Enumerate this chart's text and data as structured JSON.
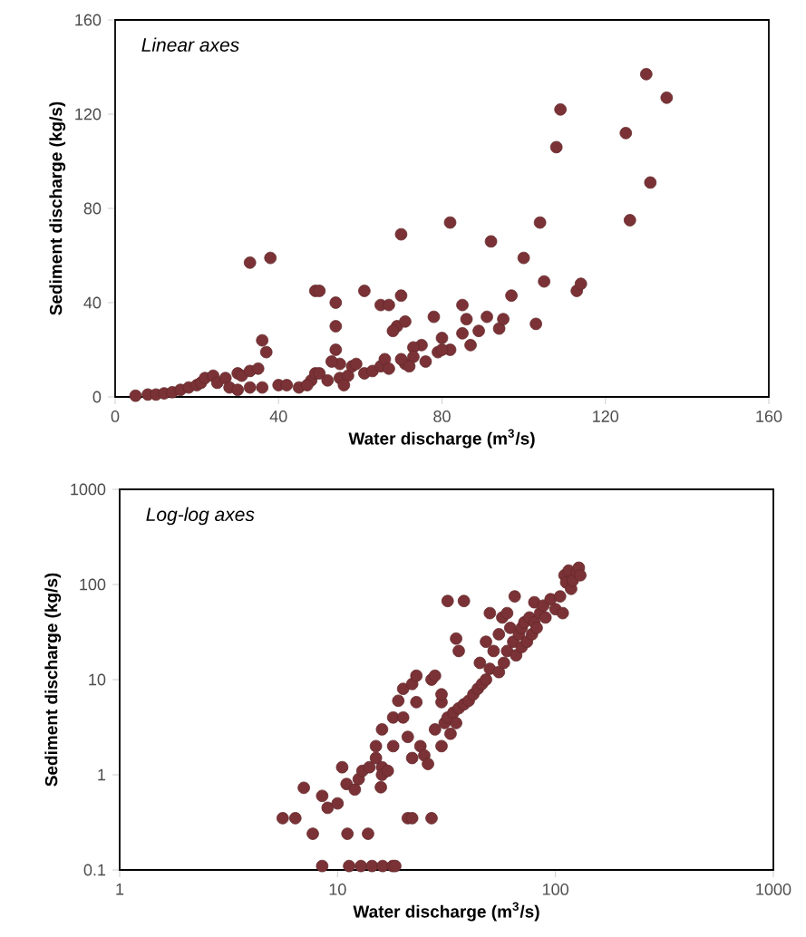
{
  "chart_data": [
    {
      "type": "scatter",
      "title": "Linear axes",
      "xlabel": "Water discharge (m$^{3}$/s)",
      "ylabel": "Sediment discharge (kg/s)",
      "color": "#7b3236",
      "marker": "circle",
      "xlim": [
        0,
        160
      ],
      "ylim": [
        0,
        160
      ],
      "xticks": [
        0,
        40,
        80,
        120,
        160
      ],
      "yticks": [
        0,
        40,
        80,
        120,
        160
      ],
      "x": [
        33,
        38,
        49,
        50,
        54,
        61,
        65,
        67,
        70,
        70,
        82,
        92,
        97,
        100,
        103,
        104,
        105,
        108,
        109,
        113,
        114,
        125,
        126,
        130,
        131,
        135,
        36,
        37,
        54,
        54,
        55,
        53,
        69,
        71,
        68,
        75,
        73,
        78,
        80,
        82,
        85,
        85,
        86,
        87,
        89,
        91,
        94,
        95,
        5,
        8,
        10,
        12,
        14,
        16,
        18,
        20,
        21,
        22,
        24,
        25,
        27,
        28,
        30,
        31,
        33,
        35,
        30,
        33,
        36,
        40,
        42,
        45,
        48,
        49,
        50,
        52,
        55,
        57,
        58,
        59,
        61,
        63,
        65,
        66,
        67,
        71,
        70,
        73,
        76,
        79,
        80,
        72,
        56,
        47
      ],
      "values": [
        57,
        59,
        45,
        45,
        40,
        45,
        39,
        39,
        69,
        43,
        74,
        66,
        43,
        59,
        31,
        74,
        49,
        106,
        122,
        45,
        48,
        112,
        75,
        137,
        91,
        127,
        24,
        19,
        30,
        20,
        14,
        15,
        30,
        32,
        28,
        22,
        21,
        34,
        25,
        20,
        27,
        39,
        33,
        22,
        28,
        34,
        29,
        33,
        0.5,
        1,
        1,
        1.5,
        2,
        3,
        4,
        5,
        6,
        8,
        9,
        6,
        8,
        4,
        10,
        9,
        11,
        12,
        3,
        4,
        4,
        5,
        5,
        4,
        7,
        10,
        10,
        7,
        8,
        9,
        13,
        14,
        10,
        11,
        13,
        16,
        12,
        14,
        16,
        17,
        15,
        19,
        20,
        13,
        5,
        5
      ]
    },
    {
      "type": "scatter",
      "title": "Log-log axes",
      "xlabel": "Water discharge (m$^{3}$/s)",
      "ylabel": "Sediment discharge (kg/s)",
      "color": "#7b3236",
      "marker": "circle",
      "log": "xy",
      "xlim": [
        1,
        1000
      ],
      "ylim": [
        0.1,
        1000
      ],
      "xticks": [
        1,
        10,
        100,
        1000
      ],
      "yticks": [
        0.1,
        1,
        10,
        100,
        1000
      ],
      "x": [
        5.6,
        6.4,
        7.0,
        7.7,
        11.1,
        13.8,
        21,
        22,
        27,
        15.8,
        16,
        32,
        38,
        35,
        36,
        30,
        23,
        8.5,
        11.3,
        12.8,
        14.4,
        16.1,
        17.9,
        18.4,
        8.5,
        9,
        10,
        10.5,
        11,
        12,
        12.5,
        13,
        14,
        15,
        15,
        16,
        16,
        17,
        18,
        18,
        19,
        20,
        20,
        21,
        22,
        22,
        23,
        24,
        25,
        26,
        27,
        28,
        28,
        30,
        30,
        31,
        32,
        33,
        34,
        35,
        36,
        38,
        40,
        42,
        44,
        45,
        46,
        48,
        48,
        50,
        50,
        52,
        55,
        55,
        57,
        58,
        60,
        60,
        62,
        64,
        65,
        66,
        68,
        70,
        70,
        72,
        74,
        76,
        78,
        80,
        80,
        82,
        85,
        88,
        90,
        95,
        100,
        105,
        108,
        110,
        112,
        115,
        118,
        120,
        125,
        128,
        130
      ],
      "values": [
        0.35,
        0.35,
        0.73,
        0.24,
        0.24,
        0.24,
        0.35,
        0.35,
        0.35,
        0.74,
        1.2,
        67,
        67,
        27,
        20,
        5.8,
        5.8,
        0.11,
        0.11,
        0.11,
        0.11,
        0.11,
        0.11,
        0.11,
        0.6,
        0.45,
        0.5,
        1.2,
        0.8,
        0.7,
        0.9,
        1.1,
        1.2,
        1.5,
        2,
        3,
        1,
        1.1,
        2,
        4,
        6,
        8,
        4,
        2.5,
        9,
        1.5,
        11,
        2,
        1.6,
        1.3,
        10,
        11,
        3,
        2,
        7,
        3.5,
        4,
        2.7,
        4.5,
        3.5,
        5,
        5.5,
        6,
        7,
        8,
        15,
        9,
        10,
        25,
        50,
        13,
        20,
        12,
        30,
        45,
        15,
        20,
        50,
        35,
        25,
        75,
        18,
        30,
        35,
        22,
        40,
        25,
        45,
        30,
        65,
        40,
        35,
        50,
        60,
        45,
        70,
        55,
        75,
        50,
        125,
        105,
        140,
        90,
        110,
        135,
        150,
        125
      ]
    }
  ]
}
